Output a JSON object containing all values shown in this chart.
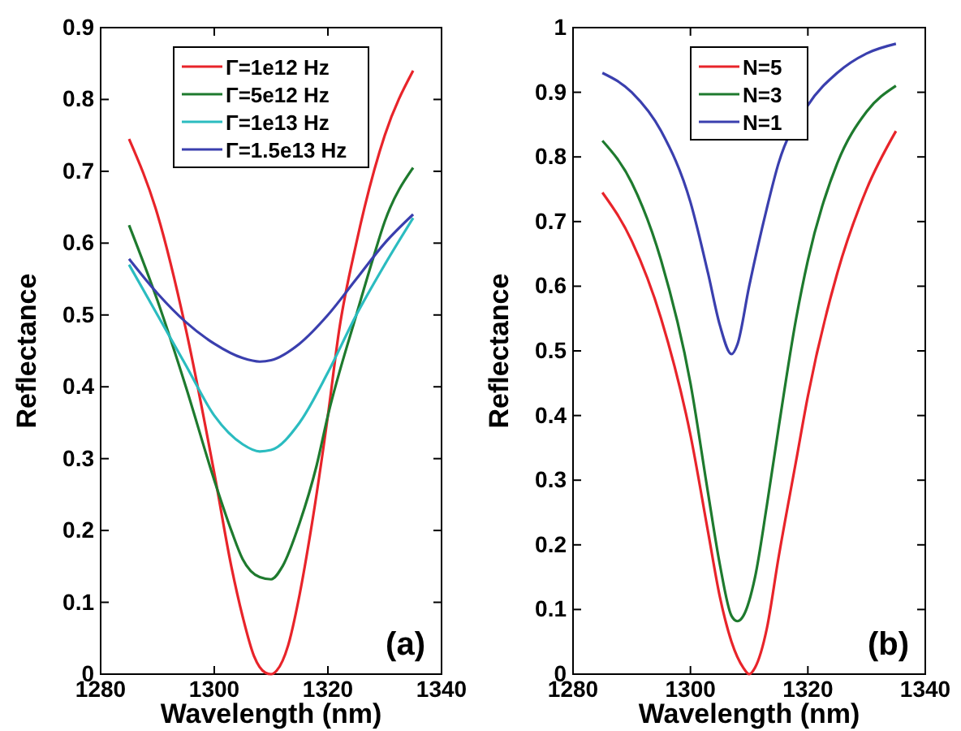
{
  "chart_data": [
    {
      "type": "line",
      "xlabel": "Wavelength (nm)",
      "ylabel": "Reflectance",
      "xlim": [
        1280,
        1340
      ],
      "xticks": [
        1280,
        1300,
        1320,
        1340
      ],
      "ylim": [
        0,
        0.9
      ],
      "yticks": [
        0,
        0.1,
        0.2,
        0.3,
        0.4,
        0.5,
        0.6,
        0.7,
        0.8,
        0.9
      ],
      "legend": "top",
      "annotations": [
        "(a)"
      ],
      "series": [
        {
          "name": "Γ=1e12 Hz",
          "color": "#e8242a",
          "x": [
            1285,
            1290,
            1295,
            1300,
            1303,
            1305,
            1307,
            1309,
            1310,
            1311,
            1313,
            1315,
            1317,
            1320,
            1322,
            1325,
            1330,
            1335
          ],
          "values": [
            0.745,
            0.64,
            0.48,
            0.28,
            0.15,
            0.08,
            0.025,
            0.002,
            0,
            0.005,
            0.04,
            0.11,
            0.2,
            0.36,
            0.48,
            0.6,
            0.75,
            0.84
          ]
        },
        {
          "name": "Γ=5e12 Hz",
          "color": "#1e7a2e",
          "x": [
            1285,
            1290,
            1295,
            1300,
            1303,
            1305,
            1308,
            1310,
            1312,
            1315,
            1318,
            1320,
            1325,
            1328,
            1330,
            1335
          ],
          "values": [
            0.625,
            0.52,
            0.4,
            0.27,
            0.2,
            0.16,
            0.135,
            0.132,
            0.15,
            0.21,
            0.29,
            0.36,
            0.5,
            0.58,
            0.63,
            0.705
          ]
        },
        {
          "name": "Γ=1e13 Hz",
          "color": "#2bbcc0",
          "x": [
            1285,
            1290,
            1295,
            1300,
            1305,
            1308,
            1310,
            1315,
            1320,
            1325,
            1330,
            1335
          ],
          "values": [
            0.57,
            0.5,
            0.43,
            0.36,
            0.32,
            0.31,
            0.312,
            0.35,
            0.42,
            0.5,
            0.57,
            0.635
          ]
        },
        {
          "name": "Γ=1.5e13 Hz",
          "color": "#3a3fae",
          "x": [
            1285,
            1290,
            1295,
            1300,
            1305,
            1308,
            1310,
            1315,
            1320,
            1325,
            1330,
            1335
          ],
          "values": [
            0.578,
            0.53,
            0.49,
            0.46,
            0.44,
            0.435,
            0.437,
            0.46,
            0.5,
            0.55,
            0.6,
            0.64
          ]
        }
      ]
    },
    {
      "type": "line",
      "xlabel": "Wavelength (nm)",
      "ylabel": "Reflectance",
      "xlim": [
        1280,
        1340
      ],
      "xticks": [
        1280,
        1300,
        1320,
        1340
      ],
      "ylim": [
        0,
        1
      ],
      "yticks": [
        0,
        0.1,
        0.2,
        0.3,
        0.4,
        0.5,
        0.6,
        0.7,
        0.8,
        0.9,
        1
      ],
      "legend": "top",
      "annotations": [
        "(b)"
      ],
      "series": [
        {
          "name": "N=5",
          "color": "#e8242a",
          "x": [
            1285,
            1290,
            1295,
            1300,
            1303,
            1305,
            1307,
            1309,
            1310,
            1311,
            1313,
            1315,
            1318,
            1320,
            1325,
            1330,
            1335
          ],
          "values": [
            0.745,
            0.67,
            0.55,
            0.37,
            0.22,
            0.12,
            0.05,
            0.01,
            0,
            0.01,
            0.07,
            0.18,
            0.33,
            0.43,
            0.62,
            0.75,
            0.84
          ]
        },
        {
          "name": "N=3",
          "color": "#1e7a2e",
          "x": [
            1285,
            1290,
            1295,
            1300,
            1303,
            1305,
            1307,
            1308,
            1309,
            1311,
            1313,
            1315,
            1318,
            1320,
            1325,
            1330,
            1335
          ],
          "values": [
            0.825,
            0.76,
            0.64,
            0.45,
            0.28,
            0.17,
            0.09,
            0.082,
            0.09,
            0.15,
            0.26,
            0.38,
            0.55,
            0.64,
            0.79,
            0.87,
            0.91
          ]
        },
        {
          "name": "N=1",
          "color": "#3a3fae",
          "x": [
            1285,
            1290,
            1295,
            1300,
            1303,
            1305,
            1307,
            1308,
            1310,
            1313,
            1315,
            1320,
            1325,
            1330,
            1335
          ],
          "values": [
            0.93,
            0.9,
            0.84,
            0.73,
            0.62,
            0.54,
            0.495,
            0.51,
            0.6,
            0.72,
            0.79,
            0.88,
            0.93,
            0.96,
            0.975
          ]
        }
      ]
    }
  ]
}
